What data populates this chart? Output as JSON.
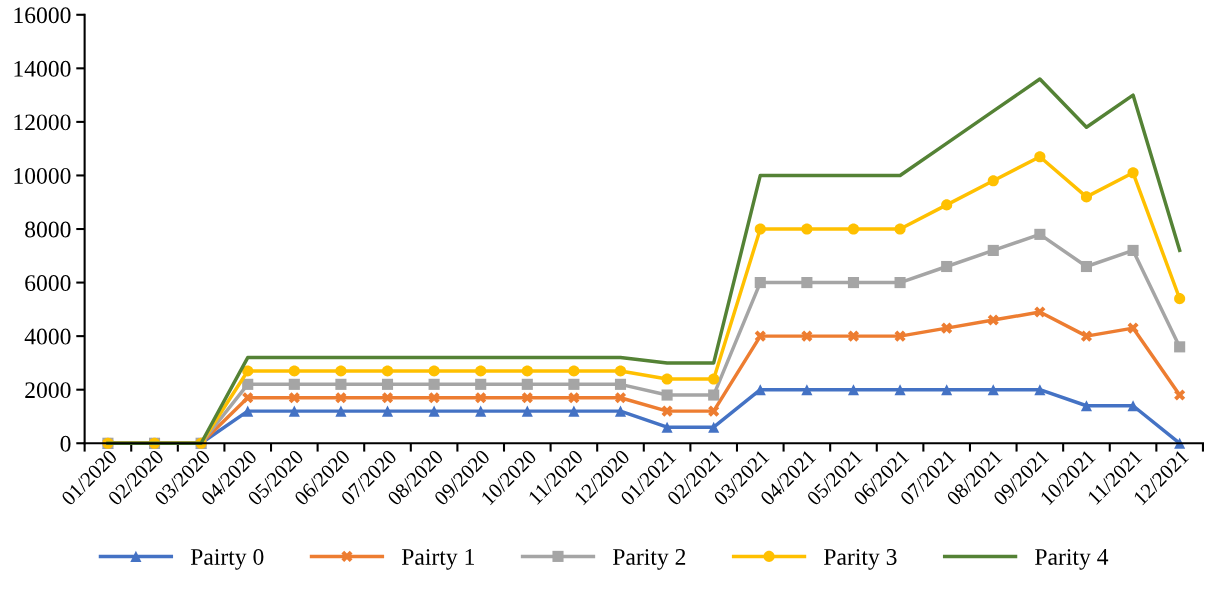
{
  "chart_data": {
    "type": "line",
    "categories": [
      "01/2020",
      "02/2020",
      "03/2020",
      "04/2020",
      "05/2020",
      "06/2020",
      "07/2020",
      "08/2020",
      "09/2020",
      "10/2020",
      "11/2020",
      "12/2020",
      "01/2021",
      "02/2021",
      "03/2021",
      "04/2021",
      "05/2021",
      "06/2021",
      "07/2021",
      "08/2021",
      "09/2021",
      "10/2021",
      "11/2021",
      "12/2021"
    ],
    "series": [
      {
        "name": "Pairty 0",
        "color": "#4472c4",
        "marker": "triangle",
        "values": [
          0,
          0,
          0,
          1200,
          1200,
          1200,
          1200,
          1200,
          1200,
          1200,
          1200,
          1200,
          600,
          600,
          2000,
          2000,
          2000,
          2000,
          2000,
          2000,
          2000,
          1400,
          1400,
          0
        ]
      },
      {
        "name": "Pairty 1",
        "color": "#ed7d31",
        "marker": "cross",
        "values": [
          0,
          0,
          0,
          1700,
          1700,
          1700,
          1700,
          1700,
          1700,
          1700,
          1700,
          1700,
          1200,
          1200,
          4000,
          4000,
          4000,
          4000,
          4300,
          4600,
          4900,
          4000,
          4300,
          1800
        ]
      },
      {
        "name": "Parity 2",
        "color": "#a5a5a5",
        "marker": "square",
        "values": [
          0,
          0,
          0,
          2200,
          2200,
          2200,
          2200,
          2200,
          2200,
          2200,
          2200,
          2200,
          1800,
          1800,
          6000,
          6000,
          6000,
          6000,
          6600,
          7200,
          7800,
          6600,
          7200,
          3600
        ]
      },
      {
        "name": "Parity 3",
        "color": "#ffc000",
        "marker": "circle",
        "values": [
          0,
          0,
          0,
          2700,
          2700,
          2700,
          2700,
          2700,
          2700,
          2700,
          2700,
          2700,
          2400,
          2400,
          8000,
          8000,
          8000,
          8000,
          8900,
          9800,
          10700,
          9200,
          10100,
          5400
        ]
      },
      {
        "name": "Parity 4",
        "color": "#548235",
        "marker": "none",
        "values": [
          0,
          0,
          0,
          3200,
          3200,
          3200,
          3200,
          3200,
          3200,
          3200,
          3200,
          3200,
          3000,
          3000,
          10000,
          10000,
          10000,
          10000,
          11200,
          12400,
          13600,
          11800,
          13000,
          7200
        ]
      }
    ],
    "ylim": [
      0,
      16000
    ],
    "yticks": [
      0,
      2000,
      4000,
      6000,
      8000,
      10000,
      12000,
      14000,
      16000
    ],
    "grid": false,
    "legend": "bottom",
    "line_style": "solid"
  }
}
